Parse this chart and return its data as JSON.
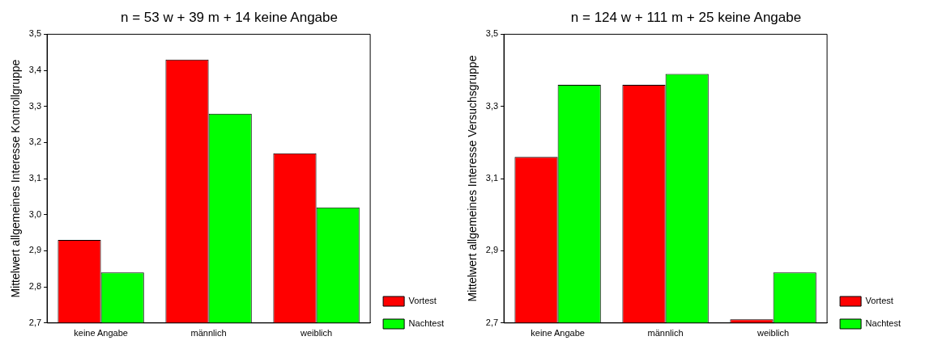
{
  "chart_data": [
    {
      "type": "bar",
      "title": "n = 53 w + 39 m + 14 keine Angabe",
      "ylabel": "Mittelwert allgemeines Interesse Kontrollgruppe",
      "categories": [
        "keine Angabe",
        "männlich",
        "weiblich"
      ],
      "series": [
        {
          "name": "Vortest",
          "color": "#ff0000",
          "values": [
            2.93,
            3.43,
            3.17
          ]
        },
        {
          "name": "Nachtest",
          "color": "#00ff00",
          "values": [
            2.84,
            3.28,
            3.02
          ]
        }
      ],
      "ylim": [
        2.7,
        3.5
      ],
      "yticks": [
        {
          "value": 2.7,
          "label": "2,7"
        },
        {
          "value": 2.8,
          "label": "2,8"
        },
        {
          "value": 2.9,
          "label": "2,9"
        },
        {
          "value": 3.0,
          "label": "3,0"
        },
        {
          "value": 3.1,
          "label": "3,1"
        },
        {
          "value": 3.2,
          "label": "3,2"
        },
        {
          "value": 3.3,
          "label": "3,3"
        },
        {
          "value": 3.4,
          "label": "3,4"
        },
        {
          "value": 3.5,
          "label": "3,5"
        }
      ],
      "grid": false,
      "legend": "bottom right"
    },
    {
      "type": "bar",
      "title": "n = 124 w + 111 m + 25 keine Angabe",
      "ylabel": "Mittelwert allgemeines Interesse Versuchsgruppe",
      "categories": [
        "keine Angabe",
        "männlich",
        "weiblich"
      ],
      "series": [
        {
          "name": "Vortest",
          "color": "#ff0000",
          "values": [
            3.16,
            3.36,
            2.71
          ]
        },
        {
          "name": "Nachtest",
          "color": "#00ff00",
          "values": [
            3.36,
            3.39,
            2.84
          ]
        }
      ],
      "ylim": [
        2.7,
        3.5
      ],
      "yticks": [
        {
          "value": 2.7,
          "label": "2,7"
        },
        {
          "value": 2.9,
          "label": "2,9"
        },
        {
          "value": 3.1,
          "label": "3,1"
        },
        {
          "value": 3.3,
          "label": "3,3"
        },
        {
          "value": 3.5,
          "label": "3,5"
        }
      ],
      "grid": false,
      "legend": "bottom right"
    }
  ]
}
